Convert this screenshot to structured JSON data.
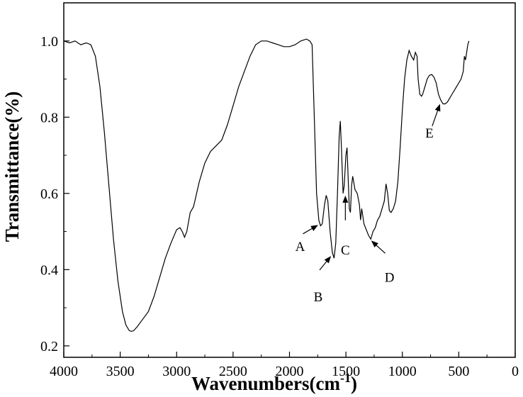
{
  "chart_data": {
    "type": "line",
    "title": "",
    "xlabel": "Wavenumbers(cm",
    "xlabel_sup": "-1",
    "xlabel_close": ")",
    "ylabel": "Transmittance(%)",
    "xlim": [
      4000,
      0
    ],
    "ylim": [
      0.17,
      1.1
    ],
    "x_ticks": [
      4000,
      3500,
      3000,
      2500,
      2000,
      1500,
      1000,
      500,
      0
    ],
    "y_ticks": [
      0.2,
      0.4,
      0.6,
      0.8,
      1.0
    ],
    "x_tick_labels": [
      "4000",
      "3500",
      "3000",
      "2500",
      "2000",
      "1500",
      "1000",
      "500",
      "0"
    ],
    "y_tick_labels": [
      "0.2",
      "0.4",
      "0.6",
      "0.8",
      "1.0"
    ],
    "grid": false,
    "series": [
      {
        "color": "#000000",
        "points": [
          [
            4000,
            1.0
          ],
          [
            3950,
            0.995
          ],
          [
            3900,
            1.0
          ],
          [
            3850,
            0.99
          ],
          [
            3800,
            0.995
          ],
          [
            3760,
            0.99
          ],
          [
            3720,
            0.96
          ],
          [
            3680,
            0.88
          ],
          [
            3640,
            0.76
          ],
          [
            3600,
            0.62
          ],
          [
            3560,
            0.48
          ],
          [
            3520,
            0.37
          ],
          [
            3480,
            0.29
          ],
          [
            3450,
            0.255
          ],
          [
            3420,
            0.24
          ],
          [
            3400,
            0.238
          ],
          [
            3380,
            0.24
          ],
          [
            3350,
            0.25
          ],
          [
            3300,
            0.27
          ],
          [
            3250,
            0.29
          ],
          [
            3200,
            0.33
          ],
          [
            3150,
            0.38
          ],
          [
            3100,
            0.43
          ],
          [
            3050,
            0.47
          ],
          [
            3000,
            0.505
          ],
          [
            2970,
            0.51
          ],
          [
            2950,
            0.5
          ],
          [
            2930,
            0.485
          ],
          [
            2910,
            0.5
          ],
          [
            2880,
            0.55
          ],
          [
            2850,
            0.565
          ],
          [
            2800,
            0.63
          ],
          [
            2750,
            0.68
          ],
          [
            2700,
            0.71
          ],
          [
            2650,
            0.725
          ],
          [
            2600,
            0.74
          ],
          [
            2550,
            0.78
          ],
          [
            2500,
            0.83
          ],
          [
            2450,
            0.88
          ],
          [
            2400,
            0.92
          ],
          [
            2350,
            0.96
          ],
          [
            2300,
            0.99
          ],
          [
            2250,
            1.0
          ],
          [
            2200,
            1.0
          ],
          [
            2150,
            0.995
          ],
          [
            2100,
            0.99
          ],
          [
            2050,
            0.985
          ],
          [
            2000,
            0.985
          ],
          [
            1950,
            0.99
          ],
          [
            1900,
            1.0
          ],
          [
            1850,
            1.005
          ],
          [
            1820,
            1.0
          ],
          [
            1800,
            0.99
          ],
          [
            1780,
            0.8
          ],
          [
            1760,
            0.6
          ],
          [
            1740,
            0.53
          ],
          [
            1725,
            0.515
          ],
          [
            1710,
            0.52
          ],
          [
            1690,
            0.57
          ],
          [
            1675,
            0.595
          ],
          [
            1660,
            0.58
          ],
          [
            1640,
            0.5
          ],
          [
            1620,
            0.445
          ],
          [
            1605,
            0.43
          ],
          [
            1590,
            0.47
          ],
          [
            1575,
            0.6
          ],
          [
            1560,
            0.75
          ],
          [
            1550,
            0.79
          ],
          [
            1540,
            0.72
          ],
          [
            1525,
            0.6
          ],
          [
            1515,
            0.62
          ],
          [
            1500,
            0.7
          ],
          [
            1490,
            0.72
          ],
          [
            1480,
            0.64
          ],
          [
            1470,
            0.56
          ],
          [
            1460,
            0.55
          ],
          [
            1450,
            0.62
          ],
          [
            1440,
            0.645
          ],
          [
            1420,
            0.61
          ],
          [
            1400,
            0.6
          ],
          [
            1380,
            0.57
          ],
          [
            1370,
            0.53
          ],
          [
            1360,
            0.56
          ],
          [
            1340,
            0.52
          ],
          [
            1320,
            0.505
          ],
          [
            1300,
            0.49
          ],
          [
            1280,
            0.48
          ],
          [
            1260,
            0.5
          ],
          [
            1240,
            0.51
          ],
          [
            1220,
            0.53
          ],
          [
            1200,
            0.54
          ],
          [
            1180,
            0.56
          ],
          [
            1160,
            0.58
          ],
          [
            1145,
            0.625
          ],
          [
            1130,
            0.6
          ],
          [
            1115,
            0.555
          ],
          [
            1100,
            0.55
          ],
          [
            1080,
            0.56
          ],
          [
            1060,
            0.58
          ],
          [
            1040,
            0.63
          ],
          [
            1020,
            0.72
          ],
          [
            1000,
            0.82
          ],
          [
            980,
            0.9
          ],
          [
            960,
            0.95
          ],
          [
            940,
            0.975
          ],
          [
            920,
            0.96
          ],
          [
            900,
            0.95
          ],
          [
            885,
            0.97
          ],
          [
            870,
            0.96
          ],
          [
            860,
            0.9
          ],
          [
            845,
            0.86
          ],
          [
            830,
            0.855
          ],
          [
            820,
            0.86
          ],
          [
            800,
            0.88
          ],
          [
            780,
            0.9
          ],
          [
            760,
            0.91
          ],
          [
            740,
            0.912
          ],
          [
            720,
            0.905
          ],
          [
            700,
            0.89
          ],
          [
            680,
            0.86
          ],
          [
            660,
            0.845
          ],
          [
            640,
            0.835
          ],
          [
            620,
            0.835
          ],
          [
            600,
            0.84
          ],
          [
            560,
            0.86
          ],
          [
            520,
            0.88
          ],
          [
            480,
            0.9
          ],
          [
            460,
            0.92
          ],
          [
            450,
            0.96
          ],
          [
            440,
            0.95
          ],
          [
            430,
            0.97
          ],
          [
            420,
            0.99
          ],
          [
            410,
            1.0
          ]
        ]
      }
    ],
    "annotations": [
      {
        "label": "A",
        "point": [
          1730,
          0.52
        ]
      },
      {
        "label": "B",
        "point": [
          1620,
          0.44
        ]
      },
      {
        "label": "C",
        "point": [
          1505,
          0.6
        ]
      },
      {
        "label": "D",
        "point": [
          1290,
          0.48
        ]
      },
      {
        "label": "E",
        "point": [
          660,
          0.84
        ]
      }
    ]
  }
}
